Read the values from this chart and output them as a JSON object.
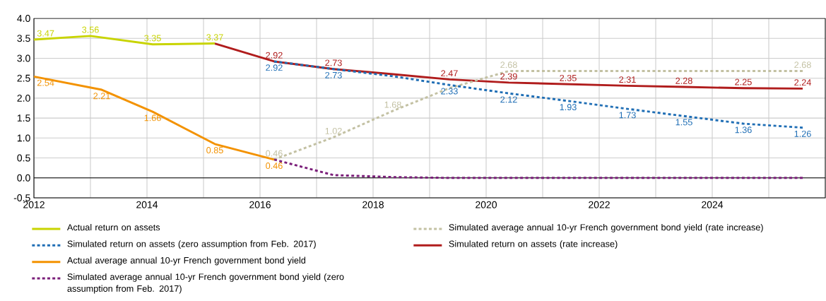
{
  "chart_data": {
    "type": "line",
    "xlim": [
      2012,
      2026
    ],
    "xticks": [
      2012,
      {
        "value": 2013,
        "label": null
      },
      2014,
      {
        "value": 2015,
        "label": null
      },
      2016,
      {
        "value": 2017,
        "label": null
      },
      2018,
      {
        "value": 2019,
        "label": null
      },
      2020,
      {
        "value": 2021,
        "label": null
      },
      2022,
      {
        "value": 2023,
        "label": null
      },
      2024,
      {
        "value": 2025,
        "label": null
      }
    ],
    "ylim": [
      -0.5,
      4.0
    ],
    "yticks": [
      {
        "value": -0.5,
        "label": "-0.5"
      },
      {
        "value": 0,
        "label": "0.0"
      },
      {
        "value": 0.5,
        "label": "0.5"
      },
      {
        "value": 1,
        "label": "1.0"
      },
      {
        "value": 1.5,
        "label": "1.5"
      },
      {
        "value": 2,
        "label": "2.0"
      },
      {
        "value": 2.5,
        "label": "2.5"
      },
      {
        "value": 3,
        "label": "3.0"
      },
      {
        "value": 3.5,
        "label": "3.5"
      },
      {
        "value": 4,
        "label": "4.0"
      }
    ],
    "grid": true,
    "legend": "bottom",
    "marker": "none",
    "ref_lines": [
      {
        "axis": "y",
        "value": 0,
        "color": "#000000"
      }
    ],
    "series": [
      {
        "name": "Actual return on assets",
        "color": "#c8d400",
        "line_style": "solid",
        "x": [
          2012,
          2013,
          2014.1,
          2015.2
        ],
        "values": [
          3.47,
          3.56,
          3.35,
          3.37
        ],
        "value_labels": [
          "3.47",
          "3.56",
          "3.35",
          "3.37"
        ]
      },
      {
        "name": "Simulated return on assets (zero assumption from Feb. 2017)",
        "color": "#1f6eb5",
        "line_style": "dotted",
        "x": [
          2016.25,
          2017.3,
          2018.35,
          2019.35,
          2020.4,
          2021.45,
          2022.5,
          2023.5,
          2024.55,
          2025.6
        ],
        "values": [
          2.92,
          2.73,
          2.55,
          2.33,
          2.12,
          1.93,
          1.73,
          1.55,
          1.36,
          1.26
        ],
        "value_labels": [
          "2.92",
          "2.73",
          null,
          "2.33",
          "2.12",
          "1.93",
          "1.73",
          "1.55",
          "1.36",
          "1.26"
        ]
      },
      {
        "name": "Actual average annual 10-yr French government bond yield",
        "color": "#f39200",
        "line_style": "solid",
        "x": [
          2012,
          2013.2,
          2014.1,
          2015.2,
          2016.25
        ],
        "values": [
          2.54,
          2.21,
          1.66,
          0.85,
          0.46
        ],
        "value_labels": [
          "2.54",
          "2.21",
          "1.66",
          "0.85",
          "0.46"
        ]
      },
      {
        "name": "Simulated average annual 10-yr French government bond yield (zero assumption from Feb. 2017)",
        "color": "#7b1f7a",
        "line_style": "dotted",
        "x": [
          2016.25,
          2017.3,
          2018.35,
          2019.35,
          2025.6
        ],
        "values": [
          0.46,
          0.07,
          0.02,
          0,
          0
        ]
      },
      {
        "name": "Simulated average annual 10-yr French government bond yield (rate increase)",
        "color": "#c3c1a3",
        "line_style": "dotted",
        "x": [
          2016.25,
          2017.3,
          2018.35,
          2019.35,
          2020.4,
          2025.6
        ],
        "values": [
          0.46,
          1.02,
          1.68,
          2.25,
          2.68,
          2.68
        ],
        "value_labels": [
          "0.46",
          "1.02",
          "1.68",
          null,
          "2.68",
          "2.68"
        ]
      },
      {
        "name": "Simulated return on assets (rate increase)",
        "color": "#b01c1c",
        "line_style": "solid",
        "x": [
          2015.2,
          2016.25,
          2017.3,
          2018.35,
          2019.35,
          2020.4,
          2021.45,
          2022.5,
          2023.5,
          2024.55,
          2025.6
        ],
        "values": [
          3.37,
          2.92,
          2.73,
          2.6,
          2.47,
          2.39,
          2.35,
          2.31,
          2.28,
          2.25,
          2.24
        ],
        "value_labels": [
          null,
          "2.92",
          "2.73",
          null,
          "2.47",
          "2.39",
          "2.35",
          "2.31",
          "2.28",
          "2.25",
          "2.24"
        ]
      }
    ]
  }
}
